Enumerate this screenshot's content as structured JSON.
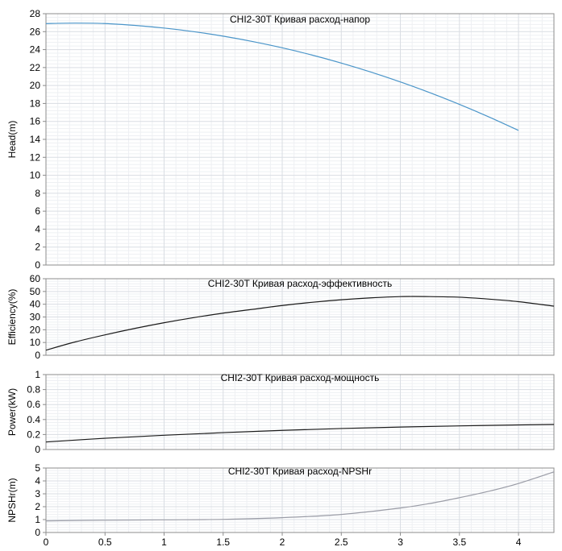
{
  "chart_data": [
    {
      "type": "line",
      "title": "CHI2-30T Кривая расход-напор",
      "ylabel": "Head(m)",
      "xlim": [
        0,
        4.3
      ],
      "ylim": [
        0,
        28
      ],
      "yticks": [
        0,
        2,
        4,
        6,
        8,
        10,
        12,
        14,
        16,
        18,
        20,
        22,
        24,
        26,
        28
      ],
      "grid": true,
      "color": "#4a95c9",
      "series": [
        {
          "x": [
            0,
            0.25,
            0.5,
            0.75,
            1,
            1.25,
            1.5,
            1.75,
            2,
            2.25,
            2.5,
            2.75,
            3,
            3.25,
            3.5,
            3.75,
            4
          ],
          "y": [
            26.9,
            26.95,
            26.9,
            26.7,
            26.4,
            26.0,
            25.5,
            24.9,
            24.2,
            23.4,
            22.5,
            21.5,
            20.4,
            19.2,
            17.9,
            16.5,
            15.0
          ]
        }
      ]
    },
    {
      "type": "line",
      "title": "CHI2-30T Кривая расход-эффективность",
      "ylabel": "Efficiency(%)",
      "xlim": [
        0,
        4.3
      ],
      "ylim": [
        0,
        60
      ],
      "yticks": [
        0,
        10,
        20,
        30,
        40,
        50,
        60
      ],
      "grid": true,
      "color": "#1a1a1a",
      "series": [
        {
          "x": [
            0,
            0.25,
            0.5,
            0.75,
            1,
            1.25,
            1.5,
            1.75,
            2,
            2.25,
            2.5,
            2.75,
            3,
            3.25,
            3.5,
            3.75,
            4,
            4.3
          ],
          "y": [
            4,
            10.5,
            16,
            21,
            25.5,
            29.5,
            33,
            36,
            39,
            41.5,
            43.5,
            45,
            46,
            46,
            45.5,
            44,
            42,
            38.5
          ]
        }
      ]
    },
    {
      "type": "line",
      "title": "CHI2-30T Кривая расход-мощность",
      "ylabel": "Power(kW)",
      "xlim": [
        0,
        4.3
      ],
      "ylim": [
        0,
        1
      ],
      "yticks": [
        0,
        0.2,
        0.4,
        0.6,
        0.8,
        1
      ],
      "grid": true,
      "color": "#1a1a1a",
      "series": [
        {
          "x": [
            0,
            0.5,
            1,
            1.5,
            2,
            2.5,
            3,
            3.5,
            4,
            4.3
          ],
          "y": [
            0.1,
            0.15,
            0.19,
            0.225,
            0.255,
            0.28,
            0.3,
            0.315,
            0.328,
            0.335
          ]
        }
      ]
    },
    {
      "type": "line",
      "title": "CHI2-30T Кривая расход-NPSHr",
      "ylabel": "NPSHr(m)",
      "xlim": [
        0,
        4.3
      ],
      "ylim": [
        0,
        5
      ],
      "yticks": [
        0,
        1,
        2,
        3,
        4,
        5
      ],
      "xticks": [
        0,
        0.5,
        1,
        1.5,
        2,
        2.5,
        3,
        3.5,
        4
      ],
      "grid": true,
      "color": "#9a9ca6",
      "series": [
        {
          "x": [
            0,
            0.5,
            1,
            1.5,
            2,
            2.5,
            3,
            3.25,
            3.5,
            3.75,
            4,
            4.3
          ],
          "y": [
            0.9,
            0.95,
            0.98,
            1.02,
            1.15,
            1.4,
            1.9,
            2.25,
            2.7,
            3.2,
            3.8,
            4.7
          ]
        }
      ]
    }
  ]
}
